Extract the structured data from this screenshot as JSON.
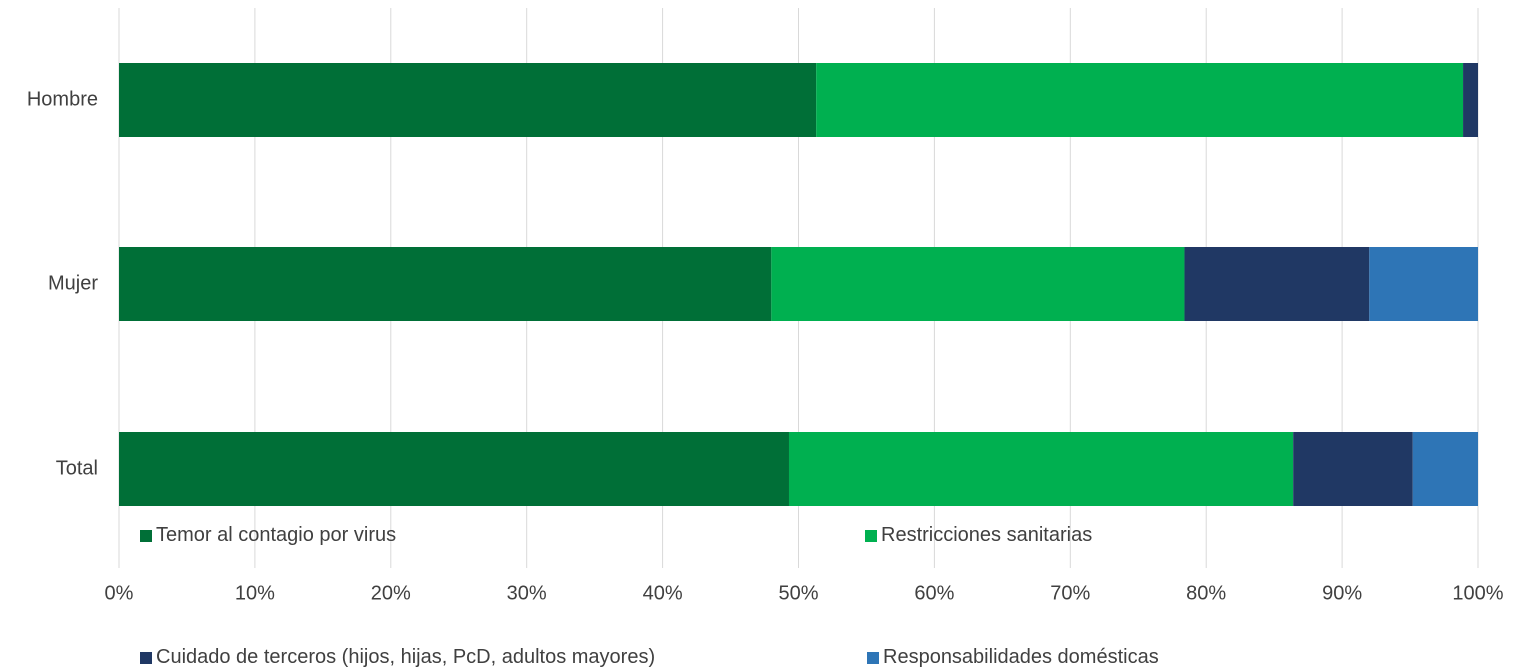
{
  "chart_data": {
    "type": "bar",
    "orientation": "horizontal",
    "stacked": "percent",
    "categories": [
      "Hombre",
      "Mujer",
      "Total"
    ],
    "series": [
      {
        "name": "Temor al contagio por virus",
        "color": "#006F37",
        "values": [
          51.3,
          48.0,
          49.3
        ]
      },
      {
        "name": "Restricciones sanitarias",
        "color": "#00B050",
        "values": [
          47.6,
          30.4,
          37.1
        ]
      },
      {
        "name": "Cuidado de terceros (hijos, hijas, PcD, adultos mayores)",
        "color": "#203864",
        "values": [
          1.1,
          13.6,
          8.8
        ]
      },
      {
        "name": "Responsabilidades domésticas",
        "color": "#2E75B6",
        "values": [
          0.0,
          8.0,
          4.8
        ]
      }
    ],
    "x_ticks": [
      "0%",
      "10%",
      "20%",
      "30%",
      "40%",
      "50%",
      "60%",
      "70%",
      "80%",
      "90%",
      "100%"
    ],
    "xlim": [
      0,
      100
    ],
    "grid": true,
    "legend_position": "bottom"
  }
}
